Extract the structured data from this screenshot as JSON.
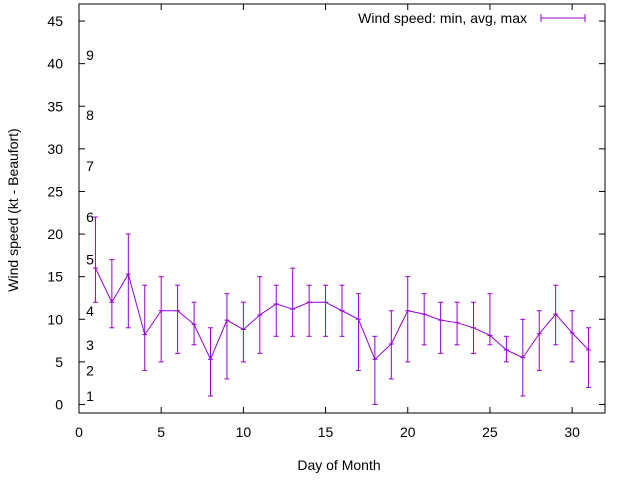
{
  "chart_data": {
    "type": "line",
    "title": "",
    "xlabel": "Day of Month",
    "ylabel": "Wind speed (kt - Beaufort)",
    "xlim": [
      0,
      32
    ],
    "ylim": [
      -1,
      47
    ],
    "xticks": [
      0,
      5,
      10,
      15,
      20,
      25,
      30
    ],
    "yticks": [
      0,
      5,
      10,
      15,
      20,
      25,
      30,
      35,
      40,
      45
    ],
    "grid": false,
    "legend": "top-right",
    "series": [
      {
        "name": "Wind speed: min, avg, max",
        "color": "#9400d3",
        "x": [
          1,
          2,
          3,
          4,
          5,
          6,
          7,
          8,
          9,
          10,
          11,
          12,
          13,
          14,
          15,
          16,
          17,
          18,
          19,
          20,
          21,
          22,
          23,
          24,
          25,
          26,
          27,
          28,
          29,
          30,
          31
        ],
        "avg": [
          16,
          12,
          15.3,
          8.2,
          11,
          11,
          9.4,
          5.3,
          9.9,
          8.8,
          10.5,
          11.8,
          11.2,
          12,
          12,
          11,
          10,
          5.3,
          7.1,
          11,
          10.6,
          9.9,
          9.6,
          9,
          8.1,
          6.4,
          5.5,
          8.3,
          10.6,
          8.4,
          6.4
        ],
        "min": [
          12,
          9,
          9,
          4,
          5,
          6,
          7,
          1,
          3,
          5,
          6,
          8,
          8,
          8,
          8,
          8,
          4,
          0,
          3,
          5,
          7,
          6,
          7,
          6,
          7,
          5,
          1,
          4,
          7,
          5,
          2
        ],
        "max": [
          22,
          17,
          20,
          14,
          15,
          14,
          12,
          9,
          13,
          12,
          15,
          14,
          16,
          14,
          14,
          14,
          13,
          8,
          11,
          15,
          13,
          12,
          12,
          12,
          13,
          8,
          10,
          11,
          14,
          11,
          9
        ]
      }
    ],
    "beaufort_labels": [
      {
        "label": "1",
        "value": 1
      },
      {
        "label": "2",
        "value": 4
      },
      {
        "label": "3",
        "value": 7
      },
      {
        "label": "4",
        "value": 11
      },
      {
        "label": "5",
        "value": 17
      },
      {
        "label": "6",
        "value": 22
      },
      {
        "label": "7",
        "value": 28
      },
      {
        "label": "8",
        "value": 34
      },
      {
        "label": "9",
        "value": 41
      }
    ]
  }
}
